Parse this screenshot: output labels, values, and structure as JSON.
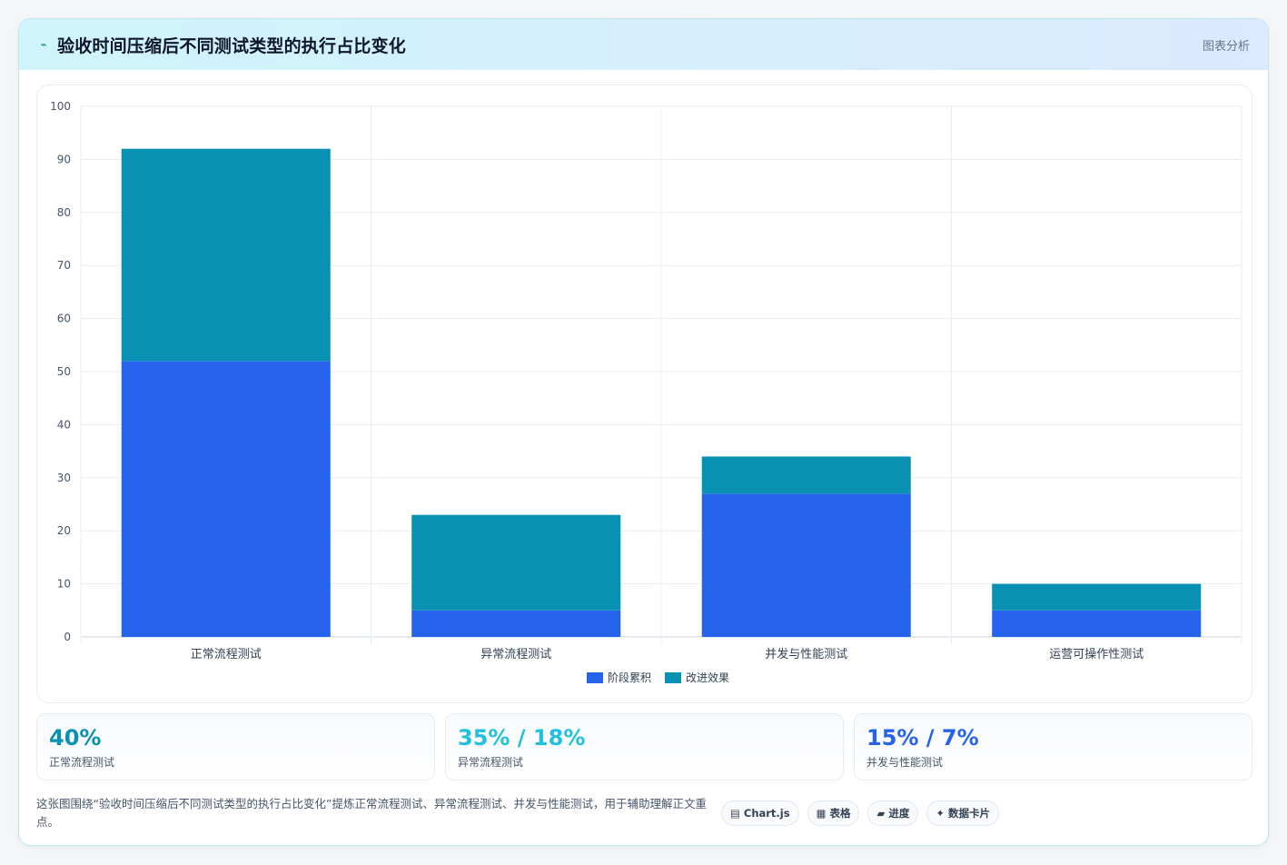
{
  "header": {
    "title": "验收时间压缩后不同测试类型的执行占比变化",
    "link": "图表分析",
    "icon": "trend-line-icon"
  },
  "chart_data": {
    "type": "bar",
    "stacked": true,
    "categories": [
      "正常流程测试",
      "异常流程测试",
      "并发与性能测试",
      "运营可操作性测试"
    ],
    "series": [
      {
        "name": "阶段累积",
        "values": [
          52,
          5,
          27,
          5
        ],
        "color": "#2563eb"
      },
      {
        "name": "改进效果",
        "values": [
          40,
          18,
          7,
          5
        ],
        "color": "#0891b2"
      }
    ],
    "ylim": [
      0,
      100
    ],
    "yticks": [
      0,
      10,
      20,
      30,
      40,
      50,
      60,
      70,
      80,
      90,
      100
    ],
    "grid": true,
    "legend": "bottom"
  },
  "stats": [
    {
      "value": "40%",
      "label": "正常流程测试",
      "color": "#0891b2"
    },
    {
      "value": "35% / 18%",
      "label": "异常流程测试",
      "color": "#22c0dd"
    },
    {
      "value": "15% / 7%",
      "label": "并发与性能测试",
      "color": "#2563eb"
    }
  ],
  "footer": {
    "text": "这张图围绕“验收时间压缩后不同测试类型的执行占比变化”提炼正常流程测试、异常流程测试、并发与性能测试，用于辅助理解正文重点。",
    "chips": [
      {
        "icon": "▤",
        "label": "Chart.js"
      },
      {
        "icon": "▦",
        "label": "表格"
      },
      {
        "icon": "▰",
        "label": "进度"
      },
      {
        "icon": "✦",
        "label": "数据卡片"
      }
    ]
  }
}
